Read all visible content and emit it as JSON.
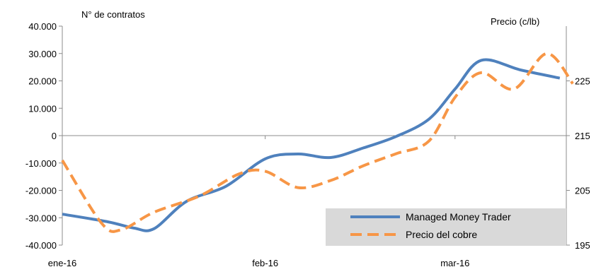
{
  "chart_data": {
    "type": "line",
    "x_tick_labels": [
      "ene-16",
      "feb-16",
      "mar-16"
    ],
    "y_left": {
      "title": "N° de contratos",
      "ticks": [
        "40.000",
        "30.000",
        "20.000",
        "10.000",
        "0",
        "-10.000",
        "-20.000",
        "-30.000",
        "-40.000"
      ],
      "range": [
        -40000,
        40000
      ]
    },
    "y_right": {
      "title": "Precio (c/lb)",
      "ticks": [
        "225",
        "215",
        "205",
        "195"
      ],
      "range": [
        195,
        235
      ]
    },
    "x_range": [
      0,
      77
    ],
    "x_tick_positions": [
      0,
      31,
      60
    ],
    "series": [
      {
        "name": "Managed Money Trader",
        "axis": "left",
        "color": "#4f81bd",
        "style": "solid",
        "points": [
          [
            0,
            -28700
          ],
          [
            7,
            -31500
          ],
          [
            11,
            -33800
          ],
          [
            14,
            -34000
          ],
          [
            19,
            -24000
          ],
          [
            25,
            -18500
          ],
          [
            31,
            -8500
          ],
          [
            36,
            -6700
          ],
          [
            41,
            -8000
          ],
          [
            46,
            -4500
          ],
          [
            51,
            -300
          ],
          [
            56,
            6000
          ],
          [
            60,
            17000
          ],
          [
            64,
            27500
          ],
          [
            70,
            24000
          ],
          [
            76,
            21000
          ]
        ]
      },
      {
        "name": "Precio del cobre",
        "axis": "right",
        "color": "#f79646",
        "style": "dashed",
        "points": [
          [
            0,
            210.5
          ],
          [
            6,
            199.0
          ],
          [
            9,
            197.8
          ],
          [
            14,
            201.0
          ],
          [
            21,
            204.0
          ],
          [
            27,
            208.0
          ],
          [
            31,
            208.5
          ],
          [
            36,
            205.5
          ],
          [
            41,
            206.8
          ],
          [
            46,
            209.5
          ],
          [
            51,
            211.7
          ],
          [
            56,
            214.0
          ],
          [
            60,
            222.0
          ],
          [
            64,
            226.5
          ],
          [
            69,
            223.5
          ],
          [
            74,
            230.0
          ],
          [
            78,
            224.5
          ]
        ]
      }
    ],
    "legend": {
      "placement": "bottom-right",
      "entries": [
        "Managed Money Trader",
        "Precio del cobre"
      ]
    },
    "grid": false
  }
}
